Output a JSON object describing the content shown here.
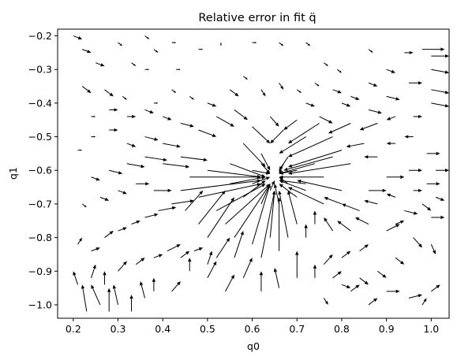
{
  "chart_data": {
    "type": "quiver",
    "title": "Relative error in fit q̈",
    "xlabel": "q0",
    "ylabel": "q1",
    "xlim": [
      0.165,
      1.04
    ],
    "ylim": [
      -1.04,
      -0.18
    ],
    "x_ticks": [
      0.2,
      0.3,
      0.4,
      0.5,
      0.6,
      0.7,
      0.8,
      0.9,
      1.0
    ],
    "x_tick_labels": [
      "0.2",
      "0.3",
      "0.4",
      "0.5",
      "0.6",
      "0.7",
      "0.8",
      "0.9",
      "1.0"
    ],
    "y_ticks": [
      -0.2,
      -0.3,
      -0.4,
      -0.5,
      -0.6,
      -0.7,
      -0.8,
      -0.9,
      -1.0
    ],
    "y_tick_labels": [
      "−0.2",
      "−0.3",
      "−0.4",
      "−0.5",
      "−0.6",
      "−0.7",
      "−0.8",
      "−0.9",
      "−1.0"
    ],
    "grid": false,
    "arrow_color": "#000000",
    "convergence_point": [
      0.65,
      -0.62
    ],
    "arrows": [
      [
        0.2,
        -0.2,
        0.02,
        -0.01
      ],
      [
        0.22,
        -0.24,
        0.02,
        -0.01
      ],
      [
        0.25,
        -0.28,
        0.02,
        -0.01
      ],
      [
        0.3,
        -0.22,
        0.01,
        -0.01
      ],
      [
        0.33,
        -0.28,
        0.01,
        -0.01
      ],
      [
        0.36,
        -0.2,
        0.01,
        -0.01
      ],
      [
        0.22,
        -0.35,
        0.02,
        -0.02
      ],
      [
        0.27,
        -0.36,
        0.02,
        -0.02
      ],
      [
        0.31,
        -0.38,
        0.01,
        -0.01
      ],
      [
        0.36,
        -0.3,
        0.01,
        0.0
      ],
      [
        0.38,
        -0.24,
        0.01,
        -0.01
      ],
      [
        0.42,
        -0.22,
        0.01,
        0.0
      ],
      [
        0.43,
        -0.3,
        0.01,
        0.0
      ],
      [
        0.48,
        -0.24,
        0.01,
        0.0
      ],
      [
        0.53,
        -0.22,
        0.0,
        -0.01
      ],
      [
        0.6,
        -0.22,
        0.01,
        0.0
      ],
      [
        0.66,
        -0.22,
        0.01,
        -0.01
      ],
      [
        0.72,
        -0.22,
        0.01,
        -0.01
      ],
      [
        0.76,
        -0.28,
        0.01,
        -0.01
      ],
      [
        0.79,
        -0.3,
        0.01,
        -0.01
      ],
      [
        0.86,
        -0.24,
        0.01,
        -0.01
      ],
      [
        0.94,
        -0.25,
        0.02,
        0.0
      ],
      [
        0.98,
        -0.24,
        0.05,
        0.0
      ],
      [
        1.0,
        -0.26,
        0.06,
        0.0
      ],
      [
        1.0,
        -0.3,
        0.06,
        -0.01
      ],
      [
        1.0,
        -0.36,
        0.06,
        -0.01
      ],
      [
        1.0,
        -0.4,
        0.06,
        -0.01
      ],
      [
        0.95,
        -0.34,
        0.03,
        0.0
      ],
      [
        0.9,
        -0.38,
        0.03,
        -0.01
      ],
      [
        0.86,
        -0.42,
        0.03,
        -0.01
      ],
      [
        0.8,
        -0.4,
        0.02,
        -0.01
      ],
      [
        0.75,
        -0.44,
        0.03,
        -0.02
      ],
      [
        0.72,
        -0.4,
        0.02,
        -0.01
      ],
      [
        0.7,
        -0.45,
        -0.03,
        -0.03
      ],
      [
        0.67,
        -0.48,
        -0.03,
        -0.04
      ],
      [
        0.64,
        -0.44,
        0.02,
        -0.03
      ],
      [
        0.6,
        -0.47,
        0.04,
        -0.05
      ],
      [
        0.72,
        -0.5,
        -0.06,
        -0.05
      ],
      [
        0.75,
        -0.46,
        -0.07,
        -0.06
      ],
      [
        0.78,
        -0.5,
        -0.1,
        -0.06
      ],
      [
        0.8,
        -0.54,
        -0.12,
        -0.05
      ],
      [
        0.82,
        -0.58,
        -0.14,
        -0.03
      ],
      [
        0.85,
        -0.52,
        -0.04,
        -0.01
      ],
      [
        0.88,
        -0.56,
        -0.03,
        0.0
      ],
      [
        0.92,
        -0.52,
        -0.02,
        0.0
      ],
      [
        0.96,
        -0.5,
        -0.02,
        0.0
      ],
      [
        0.99,
        -0.55,
        0.03,
        0.0
      ],
      [
        1.01,
        -0.6,
        0.04,
        0.0
      ],
      [
        0.95,
        -0.6,
        0.03,
        0.0
      ],
      [
        0.9,
        -0.62,
        0.04,
        0.0
      ],
      [
        0.86,
        -0.66,
        0.04,
        0.0
      ],
      [
        0.8,
        -0.66,
        -0.1,
        0.03
      ],
      [
        0.76,
        -0.7,
        -0.08,
        0.05
      ],
      [
        0.72,
        -0.66,
        -0.06,
        0.03
      ],
      [
        0.7,
        -0.6,
        -0.04,
        -0.01
      ],
      [
        0.68,
        -0.56,
        -0.02,
        -0.04
      ],
      [
        0.62,
        -0.55,
        0.02,
        -0.05
      ],
      [
        0.58,
        -0.52,
        0.05,
        -0.07
      ],
      [
        0.55,
        -0.58,
        0.08,
        -0.04
      ],
      [
        0.5,
        -0.6,
        0.12,
        -0.02
      ],
      [
        0.46,
        -0.62,
        0.16,
        0.0
      ],
      [
        0.44,
        -0.66,
        0.18,
        0.03
      ],
      [
        0.48,
        -0.68,
        0.14,
        0.04
      ],
      [
        0.52,
        -0.72,
        0.11,
        0.08
      ],
      [
        0.54,
        -0.76,
        0.1,
        0.12
      ],
      [
        0.56,
        -0.8,
        0.08,
        0.16
      ],
      [
        0.5,
        -0.8,
        0.06,
        0.12
      ],
      [
        0.48,
        -0.76,
        0.06,
        0.1
      ],
      [
        0.45,
        -0.72,
        0.04,
        0.06
      ],
      [
        0.6,
        -0.82,
        0.04,
        0.18
      ],
      [
        0.62,
        -0.86,
        0.03,
        0.2
      ],
      [
        0.64,
        -0.8,
        0.01,
        0.14
      ],
      [
        0.66,
        -0.84,
        0.0,
        0.16
      ],
      [
        0.68,
        -0.8,
        -0.02,
        0.14
      ],
      [
        0.7,
        -0.76,
        -0.02,
        0.1
      ],
      [
        0.72,
        -0.8,
        0.0,
        0.04
      ],
      [
        0.74,
        -0.76,
        0.0,
        0.04
      ],
      [
        0.78,
        -0.78,
        -0.02,
        0.04
      ],
      [
        0.82,
        -0.78,
        -0.03,
        0.03
      ],
      [
        0.86,
        -0.76,
        -0.03,
        0.02
      ],
      [
        0.9,
        -0.78,
        0.03,
        0.02
      ],
      [
        0.94,
        -0.72,
        0.03,
        -0.01
      ],
      [
        0.98,
        -0.7,
        0.02,
        -0.02
      ],
      [
        1.0,
        -0.74,
        0.03,
        0.0
      ],
      [
        0.96,
        -0.8,
        0.02,
        -0.03
      ],
      [
        1.0,
        -0.82,
        0.01,
        -0.03
      ],
      [
        0.92,
        -0.86,
        0.02,
        -0.02
      ],
      [
        0.88,
        -0.9,
        0.02,
        -0.02
      ],
      [
        0.84,
        -0.92,
        0.02,
        -0.02
      ],
      [
        0.8,
        -0.94,
        0.02,
        -0.01
      ],
      [
        0.76,
        -0.98,
        0.01,
        -0.02
      ],
      [
        0.9,
        -0.96,
        0.03,
        0.0
      ],
      [
        0.95,
        -0.98,
        0.03,
        0.01
      ],
      [
        1.0,
        -0.96,
        0.02,
        0.02
      ],
      [
        0.98,
        -1.0,
        0.01,
        0.02
      ],
      [
        0.86,
        -1.0,
        0.02,
        0.02
      ],
      [
        0.7,
        -0.92,
        0.0,
        0.08
      ],
      [
        0.66,
        -0.95,
        -0.01,
        0.06
      ],
      [
        0.62,
        -0.96,
        0.0,
        0.06
      ],
      [
        0.58,
        -0.92,
        0.02,
        0.06
      ],
      [
        0.54,
        -0.96,
        0.02,
        0.05
      ],
      [
        0.5,
        -0.92,
        0.02,
        0.05
      ],
      [
        0.46,
        -0.9,
        0.0,
        0.04
      ],
      [
        0.42,
        -0.96,
        0.02,
        0.03
      ],
      [
        0.38,
        -0.96,
        0.0,
        0.04
      ],
      [
        0.36,
        -0.98,
        -0.01,
        0.05
      ],
      [
        0.33,
        -1.02,
        0.0,
        0.05
      ],
      [
        0.3,
        -1.0,
        -0.01,
        0.06
      ],
      [
        0.28,
        -1.02,
        0.0,
        0.07
      ],
      [
        0.26,
        -1.0,
        -0.02,
        0.06
      ],
      [
        0.23,
        -1.02,
        -0.01,
        0.08
      ],
      [
        0.21,
        -0.94,
        -0.01,
        0.04
      ],
      [
        0.24,
        -0.92,
        0.01,
        0.04
      ],
      [
        0.27,
        -0.94,
        0.0,
        0.04
      ],
      [
        0.3,
        -0.9,
        0.02,
        0.03
      ],
      [
        0.34,
        -0.88,
        0.02,
        0.02
      ],
      [
        0.38,
        -0.86,
        0.02,
        0.01
      ],
      [
        0.41,
        -0.84,
        0.03,
        0.02
      ],
      [
        0.44,
        -0.86,
        0.02,
        0.02
      ],
      [
        0.47,
        -0.84,
        0.02,
        0.01
      ],
      [
        0.21,
        -0.82,
        0.01,
        0.02
      ],
      [
        0.24,
        -0.84,
        0.02,
        0.01
      ],
      [
        0.27,
        -0.8,
        0.02,
        0.02
      ],
      [
        0.3,
        -0.78,
        0.02,
        0.01
      ],
      [
        0.33,
        -0.76,
        0.02,
        0.01
      ],
      [
        0.36,
        -0.74,
        0.03,
        0.01
      ],
      [
        0.39,
        -0.72,
        0.04,
        0.01
      ],
      [
        0.42,
        -0.7,
        0.05,
        0.01
      ],
      [
        0.38,
        -0.66,
        0.04,
        0.0
      ],
      [
        0.34,
        -0.64,
        0.03,
        0.0
      ],
      [
        0.3,
        -0.66,
        0.02,
        -0.01
      ],
      [
        0.26,
        -0.68,
        0.02,
        -0.01
      ],
      [
        0.22,
        -0.7,
        0.01,
        -0.01
      ],
      [
        0.24,
        -0.62,
        0.02,
        -0.01
      ],
      [
        0.28,
        -0.6,
        0.03,
        -0.01
      ],
      [
        0.32,
        -0.58,
        0.04,
        -0.01
      ],
      [
        0.36,
        -0.56,
        0.05,
        -0.01
      ],
      [
        0.4,
        -0.58,
        0.06,
        -0.01
      ],
      [
        0.44,
        -0.56,
        0.06,
        -0.01
      ],
      [
        0.4,
        -0.52,
        0.04,
        -0.01
      ],
      [
        0.36,
        -0.5,
        0.03,
        -0.01
      ],
      [
        0.32,
        -0.52,
        0.02,
        -0.01
      ],
      [
        0.28,
        -0.48,
        0.02,
        0.0
      ],
      [
        0.24,
        -0.5,
        0.01,
        0.0
      ],
      [
        0.21,
        -0.54,
        0.01,
        0.0
      ],
      [
        0.24,
        -0.44,
        0.01,
        0.0
      ],
      [
        0.28,
        -0.42,
        0.02,
        0.0
      ],
      [
        0.32,
        -0.44,
        0.02,
        0.0
      ],
      [
        0.36,
        -0.42,
        0.02,
        -0.01
      ],
      [
        0.4,
        -0.44,
        0.02,
        -0.01
      ],
      [
        0.44,
        -0.46,
        0.03,
        -0.01
      ],
      [
        0.48,
        -0.48,
        0.04,
        -0.02
      ],
      [
        0.52,
        -0.44,
        0.04,
        -0.03
      ],
      [
        0.56,
        -0.42,
        0.03,
        -0.03
      ],
      [
        0.5,
        -0.4,
        0.02,
        -0.01
      ],
      [
        0.46,
        -0.38,
        0.01,
        -0.01
      ],
      [
        0.42,
        -0.36,
        0.01,
        -0.01
      ],
      [
        0.38,
        -0.4,
        0.01,
        0.0
      ],
      [
        0.55,
        -0.36,
        0.02,
        -0.02
      ],
      [
        0.58,
        -0.32,
        0.01,
        -0.01
      ],
      [
        0.62,
        -0.36,
        0.01,
        -0.02
      ],
      [
        0.66,
        -0.34,
        0.01,
        -0.02
      ],
      [
        0.7,
        -0.36,
        0.01,
        -0.01
      ],
      [
        0.74,
        -0.34,
        0.01,
        -0.01
      ],
      [
        0.78,
        -0.36,
        0.02,
        -0.01
      ],
      [
        0.82,
        -0.38,
        0.02,
        -0.01
      ],
      [
        0.86,
        -0.34,
        0.02,
        -0.01
      ],
      [
        0.9,
        -0.3,
        0.02,
        -0.01
      ],
      [
        0.88,
        -0.46,
        -0.04,
        -0.02
      ],
      [
        0.92,
        -0.44,
        -0.02,
        -0.01
      ],
      [
        0.96,
        -0.44,
        0.02,
        0.0
      ],
      [
        0.82,
        -0.46,
        -0.05,
        -0.03
      ],
      [
        0.78,
        -0.56,
        -0.11,
        -0.04
      ],
      [
        0.74,
        -0.58,
        -0.08,
        -0.03
      ],
      [
        0.76,
        -0.62,
        -0.1,
        0.0
      ],
      [
        0.72,
        -0.64,
        -0.06,
        0.01
      ],
      [
        0.7,
        -0.68,
        -0.04,
        0.04
      ],
      [
        0.66,
        -0.7,
        -0.01,
        0.06
      ],
      [
        0.62,
        -0.7,
        0.02,
        0.06
      ],
      [
        0.58,
        -0.68,
        0.05,
        0.05
      ],
      [
        0.55,
        -0.64,
        0.08,
        0.02
      ],
      [
        0.6,
        -0.64,
        0.04,
        0.02
      ],
      [
        0.64,
        -0.66,
        0.01,
        0.03
      ],
      [
        0.6,
        -0.6,
        0.04,
        -0.01
      ],
      [
        0.62,
        -0.58,
        0.02,
        -0.03
      ],
      [
        0.67,
        -0.58,
        -0.01,
        -0.03
      ],
      [
        0.68,
        -0.64,
        -0.02,
        0.02
      ],
      [
        0.8,
        -0.7,
        -0.04,
        0.02
      ],
      [
        0.84,
        -0.72,
        -0.04,
        0.02
      ],
      [
        0.88,
        -0.7,
        -0.03,
        0.01
      ],
      [
        0.92,
        -0.68,
        -0.02,
        0.01
      ],
      [
        0.96,
        -0.66,
        0.02,
        0.0
      ],
      [
        0.99,
        -0.64,
        0.03,
        0.0
      ],
      [
        1.01,
        -0.68,
        0.02,
        -0.01
      ],
      [
        0.92,
        -0.76,
        0.02,
        0.01
      ],
      [
        0.84,
        -0.84,
        0.02,
        0.02
      ],
      [
        0.8,
        -0.86,
        0.02,
        0.02
      ],
      [
        0.76,
        -0.88,
        0.02,
        0.03
      ],
      [
        0.74,
        -0.92,
        0.0,
        0.04
      ],
      [
        0.78,
        -0.92,
        0.02,
        0.02
      ],
      [
        0.82,
        -0.96,
        0.02,
        0.02
      ],
      [
        0.52,
        -0.86,
        0.03,
        0.06
      ],
      [
        0.56,
        -0.86,
        0.02,
        0.08
      ],
      [
        0.5,
        -0.88,
        0.01,
        0.04
      ]
    ]
  }
}
